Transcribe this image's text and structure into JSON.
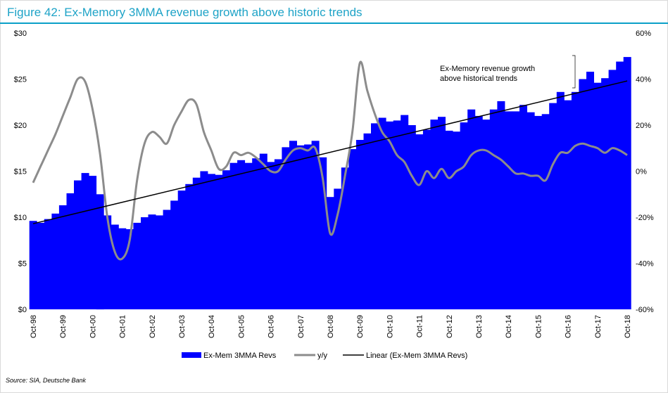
{
  "title": "Figure 42: Ex-Memory 3MMA revenue growth above historic trends",
  "source": "Source: SIA, Deutsche Bank",
  "annotation": [
    "Ex-Memory revenue growth",
    "above historical trends"
  ],
  "colors": {
    "title": "#1ea3c7",
    "bars": "#0000ff",
    "yoy": "#8c8c8c",
    "trend": "#000000"
  },
  "chart_data": {
    "type": "bar",
    "x_tick_labels": [
      "Oct-98",
      "Oct-99",
      "Oct-00",
      "Oct-01",
      "Oct-02",
      "Oct-03",
      "Oct-04",
      "Oct-05",
      "Oct-06",
      "Oct-07",
      "Oct-08",
      "Oct-09",
      "Oct-10",
      "Oct-11",
      "Oct-12",
      "Oct-13",
      "Oct-14",
      "Oct-15",
      "Oct-16",
      "Oct-17",
      "Oct-18"
    ],
    "y_left": {
      "ticks": [
        "$0",
        "$5",
        "$10",
        "$15",
        "$20",
        "$25",
        "$30"
      ],
      "ylim": [
        0,
        30
      ]
    },
    "y_right": {
      "ticks": [
        "-60%",
        "-40%",
        "-20%",
        "0%",
        "20%",
        "40%",
        "60%"
      ],
      "ylim": [
        -60,
        60
      ]
    },
    "grid": false,
    "legend_position": "bottom",
    "legend": [
      "Ex-Mem 3MMA Revs",
      "y/y",
      "Linear (Ex-Mem 3MMA Revs)"
    ],
    "series": [
      {
        "name": "Ex-Mem 3MMA Revs",
        "type": "bar",
        "axis": "left",
        "points": [
          [
            "1998-10",
            9.6
          ],
          [
            "1999-01",
            9.4
          ],
          [
            "1999-04",
            9.8
          ],
          [
            "1999-07",
            10.4
          ],
          [
            "1999-10",
            11.3
          ],
          [
            "2000-01",
            12.6
          ],
          [
            "2000-04",
            14.0
          ],
          [
            "2000-07",
            14.8
          ],
          [
            "2000-10",
            14.5
          ],
          [
            "2001-01",
            12.5
          ],
          [
            "2001-04",
            10.2
          ],
          [
            "2001-07",
            9.2
          ],
          [
            "2001-10",
            8.8
          ],
          [
            "2002-01",
            8.7
          ],
          [
            "2002-04",
            9.4
          ],
          [
            "2002-07",
            10.0
          ],
          [
            "2002-10",
            10.3
          ],
          [
            "2003-01",
            10.2
          ],
          [
            "2003-04",
            10.8
          ],
          [
            "2003-07",
            11.8
          ],
          [
            "2003-10",
            12.9
          ],
          [
            "2004-01",
            13.6
          ],
          [
            "2004-04",
            14.3
          ],
          [
            "2004-07",
            15.0
          ],
          [
            "2004-10",
            14.7
          ],
          [
            "2005-01",
            14.6
          ],
          [
            "2005-04",
            15.1
          ],
          [
            "2005-07",
            15.9
          ],
          [
            "2005-10",
            16.2
          ],
          [
            "2006-01",
            15.9
          ],
          [
            "2006-04",
            16.4
          ],
          [
            "2006-07",
            16.9
          ],
          [
            "2006-10",
            16.0
          ],
          [
            "2007-01",
            16.3
          ],
          [
            "2007-04",
            17.6
          ],
          [
            "2007-07",
            18.3
          ],
          [
            "2007-10",
            17.8
          ],
          [
            "2008-01",
            17.9
          ],
          [
            "2008-04",
            18.3
          ],
          [
            "2008-07",
            16.5
          ],
          [
            "2008-10",
            12.2
          ],
          [
            "2009-01",
            13.1
          ],
          [
            "2009-04",
            15.4
          ],
          [
            "2009-07",
            17.4
          ],
          [
            "2009-10",
            18.4
          ],
          [
            "2010-01",
            19.1
          ],
          [
            "2010-04",
            20.2
          ],
          [
            "2010-07",
            20.8
          ],
          [
            "2010-10",
            20.4
          ],
          [
            "2011-01",
            20.5
          ],
          [
            "2011-04",
            21.1
          ],
          [
            "2011-07",
            20.0
          ],
          [
            "2011-10",
            19.0
          ],
          [
            "2012-01",
            19.5
          ],
          [
            "2012-04",
            20.6
          ],
          [
            "2012-07",
            20.9
          ],
          [
            "2012-10",
            19.4
          ],
          [
            "2013-01",
            19.3
          ],
          [
            "2013-04",
            20.3
          ],
          [
            "2013-07",
            21.7
          ],
          [
            "2013-10",
            21.0
          ],
          [
            "2014-01",
            20.6
          ],
          [
            "2014-04",
            21.7
          ],
          [
            "2014-07",
            22.6
          ],
          [
            "2014-10",
            21.5
          ],
          [
            "2015-01",
            21.5
          ],
          [
            "2015-04",
            22.2
          ],
          [
            "2015-07",
            21.4
          ],
          [
            "2015-10",
            21.0
          ],
          [
            "2016-01",
            21.2
          ],
          [
            "2016-04",
            22.4
          ],
          [
            "2016-07",
            23.6
          ],
          [
            "2016-10",
            22.7
          ],
          [
            "2017-01",
            23.6
          ],
          [
            "2017-04",
            25.0
          ],
          [
            "2017-07",
            25.8
          ],
          [
            "2017-10",
            24.6
          ],
          [
            "2018-01",
            25.1
          ],
          [
            "2018-04",
            26.0
          ],
          [
            "2018-07",
            26.9
          ],
          [
            "2018-10",
            27.4
          ]
        ]
      },
      {
        "name": "y/y",
        "type": "line",
        "axis": "right",
        "points": [
          [
            "1998-10",
            -5
          ],
          [
            "1999-01",
            2
          ],
          [
            "1999-04",
            9
          ],
          [
            "1999-07",
            16
          ],
          [
            "1999-10",
            24
          ],
          [
            "2000-01",
            32
          ],
          [
            "2000-04",
            40
          ],
          [
            "2000-07",
            39
          ],
          [
            "2000-10",
            27
          ],
          [
            "2001-01",
            8
          ],
          [
            "2001-04",
            -20
          ],
          [
            "2001-07",
            -35
          ],
          [
            "2001-10",
            -38
          ],
          [
            "2002-01",
            -30
          ],
          [
            "2002-04",
            -4
          ],
          [
            "2002-07",
            12
          ],
          [
            "2002-10",
            17
          ],
          [
            "2003-01",
            15
          ],
          [
            "2003-04",
            12
          ],
          [
            "2003-07",
            20
          ],
          [
            "2003-10",
            26
          ],
          [
            "2004-01",
            31
          ],
          [
            "2004-04",
            29
          ],
          [
            "2004-07",
            17
          ],
          [
            "2004-10",
            9
          ],
          [
            "2005-01",
            1
          ],
          [
            "2005-04",
            2
          ],
          [
            "2005-07",
            8
          ],
          [
            "2005-10",
            7
          ],
          [
            "2006-01",
            8
          ],
          [
            "2006-04",
            6
          ],
          [
            "2006-07",
            3
          ],
          [
            "2006-10",
            0
          ],
          [
            "2007-01",
            0
          ],
          [
            "2007-04",
            5
          ],
          [
            "2007-07",
            9
          ],
          [
            "2007-10",
            10
          ],
          [
            "2008-01",
            9
          ],
          [
            "2008-04",
            10
          ],
          [
            "2008-07",
            -3
          ],
          [
            "2008-10",
            -27
          ],
          [
            "2009-01",
            -19
          ],
          [
            "2009-04",
            -2
          ],
          [
            "2009-07",
            17
          ],
          [
            "2009-10",
            47
          ],
          [
            "2010-01",
            35
          ],
          [
            "2010-04",
            25
          ],
          [
            "2010-07",
            17
          ],
          [
            "2010-10",
            13
          ],
          [
            "2011-01",
            7
          ],
          [
            "2011-04",
            4
          ],
          [
            "2011-07",
            -2
          ],
          [
            "2011-10",
            -6
          ],
          [
            "2012-01",
            0
          ],
          [
            "2012-04",
            -3
          ],
          [
            "2012-07",
            1
          ],
          [
            "2012-10",
            -3
          ],
          [
            "2013-01",
            0
          ],
          [
            "2013-04",
            2
          ],
          [
            "2013-07",
            7
          ],
          [
            "2013-10",
            9
          ],
          [
            "2014-01",
            9
          ],
          [
            "2014-04",
            7
          ],
          [
            "2014-07",
            5
          ],
          [
            "2014-10",
            2
          ],
          [
            "2015-01",
            -1
          ],
          [
            "2015-04",
            -1
          ],
          [
            "2015-07",
            -2
          ],
          [
            "2015-10",
            -2
          ],
          [
            "2016-01",
            -4
          ],
          [
            "2016-04",
            3
          ],
          [
            "2016-07",
            8
          ],
          [
            "2016-10",
            8
          ],
          [
            "2017-01",
            11
          ],
          [
            "2017-04",
            12
          ],
          [
            "2017-07",
            11
          ],
          [
            "2017-10",
            10
          ],
          [
            "2018-01",
            8
          ],
          [
            "2018-04",
            10
          ],
          [
            "2018-07",
            9
          ],
          [
            "2018-10",
            7
          ]
        ]
      },
      {
        "name": "Linear (Ex-Mem 3MMA Revs)",
        "type": "line",
        "axis": "left",
        "points": [
          [
            "1998-10",
            9.3
          ],
          [
            "2018-10",
            24.8
          ]
        ]
      }
    ]
  }
}
